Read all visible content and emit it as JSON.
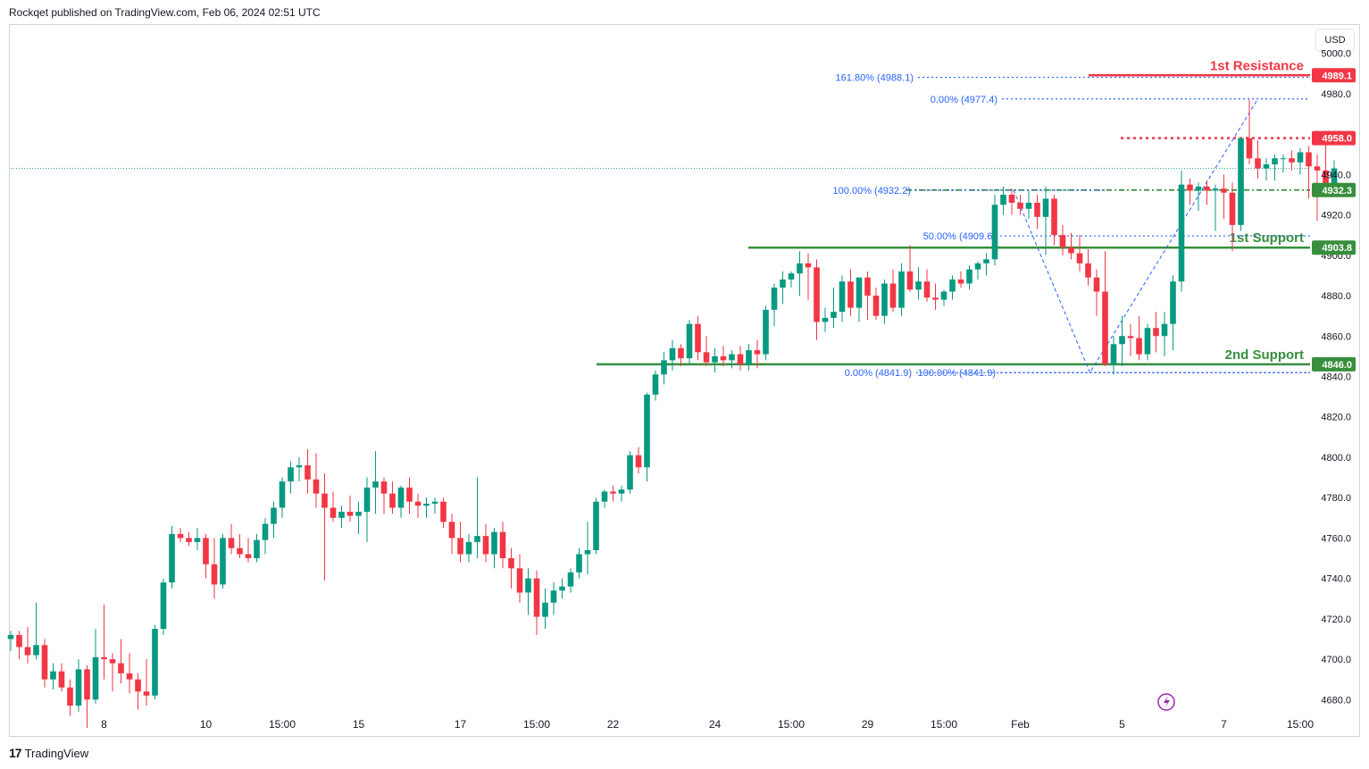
{
  "header": {
    "publisher_line": "Rockqet published on TradingView.com, Feb 06, 2024 02:51 UTC"
  },
  "currency_button": "USD",
  "footer": {
    "brand": "TradingView",
    "logo_glyph": "17"
  },
  "colors": {
    "up": "#089981",
    "down": "#f23645",
    "support": "#388e3c",
    "resistance": "#f23645",
    "fib": "#2962ff",
    "axis_text": "#131722",
    "pulse_icon": "#9c27b0"
  },
  "chart_data": {
    "type": "candlestick",
    "title": "",
    "ylim": [
      4662,
      5014
    ],
    "y_ticks": [
      4680.0,
      4700.0,
      4720.0,
      4740.0,
      4760.0,
      4780.0,
      4800.0,
      4820.0,
      4840.0,
      4860.0,
      4880.0,
      4900.0,
      4920.0,
      4940.0,
      4960.0,
      4980.0,
      5000.0
    ],
    "x_ticks": [
      {
        "label": "8",
        "index": 11
      },
      {
        "label": "10",
        "index": 23
      },
      {
        "label": "15:00",
        "index": 32
      },
      {
        "label": "15",
        "index": 41
      },
      {
        "label": "17",
        "index": 53
      },
      {
        "label": "15:00",
        "index": 62
      },
      {
        "label": "22",
        "index": 71
      },
      {
        "label": "24",
        "index": 83
      },
      {
        "label": "15:00",
        "index": 92
      },
      {
        "label": "29",
        "index": 101
      },
      {
        "label": "15:00",
        "index": 110
      },
      {
        "label": "Feb",
        "index": 119
      },
      {
        "label": "5",
        "index": 131
      },
      {
        "label": "7",
        "index": 143
      },
      {
        "label": "15:00",
        "index": 152
      }
    ],
    "candles": [
      [
        4710,
        4714,
        4704,
        4712
      ],
      [
        4712,
        4714,
        4700,
        4706
      ],
      [
        4706,
        4716,
        4698,
        4702
      ],
      [
        4702,
        4728,
        4700,
        4707
      ],
      [
        4707,
        4710,
        4686,
        4690
      ],
      [
        4690,
        4698,
        4685,
        4694
      ],
      [
        4694,
        4698,
        4684,
        4686
      ],
      [
        4686,
        4690,
        4672,
        4677
      ],
      [
        4677,
        4700,
        4674,
        4695
      ],
      [
        4695,
        4697,
        4666,
        4680
      ],
      [
        4680,
        4715,
        4678,
        4701
      ],
      [
        4701,
        4727,
        4690,
        4700
      ],
      [
        4700,
        4703,
        4684,
        4698
      ],
      [
        4698,
        4710,
        4688,
        4693
      ],
      [
        4693,
        4703,
        4683,
        4690
      ],
      [
        4690,
        4693,
        4675,
        4684
      ],
      [
        4684,
        4700,
        4677,
        4682
      ],
      [
        4682,
        4717,
        4680,
        4715
      ],
      [
        4715,
        4740,
        4712,
        4738
      ],
      [
        4738,
        4766,
        4735,
        4762
      ],
      [
        4762,
        4765,
        4758,
        4760
      ],
      [
        4760,
        4763,
        4756,
        4758
      ],
      [
        4758,
        4765,
        4754,
        4760
      ],
      [
        4760,
        4762,
        4740,
        4747
      ],
      [
        4747,
        4760,
        4730,
        4737
      ],
      [
        4737,
        4762,
        4735,
        4760
      ],
      [
        4760,
        4767,
        4752,
        4755
      ],
      [
        4755,
        4762,
        4750,
        4752
      ],
      [
        4752,
        4760,
        4748,
        4750
      ],
      [
        4750,
        4762,
        4748,
        4759
      ],
      [
        4759,
        4770,
        4752,
        4767
      ],
      [
        4767,
        4778,
        4760,
        4775
      ],
      [
        4775,
        4790,
        4770,
        4788
      ],
      [
        4788,
        4798,
        4782,
        4795
      ],
      [
        4795,
        4800,
        4788,
        4796
      ],
      [
        4796,
        4804,
        4782,
        4789
      ],
      [
        4789,
        4802,
        4775,
        4782
      ],
      [
        4782,
        4792,
        4739,
        4775
      ],
      [
        4775,
        4783,
        4768,
        4770
      ],
      [
        4770,
        4776,
        4765,
        4773
      ],
      [
        4773,
        4781,
        4768,
        4771
      ],
      [
        4771,
        4778,
        4762,
        4773
      ],
      [
        4773,
        4790,
        4758,
        4785
      ],
      [
        4785,
        4803,
        4772,
        4788
      ],
      [
        4788,
        4790,
        4772,
        4782
      ],
      [
        4782,
        4788,
        4772,
        4775
      ],
      [
        4775,
        4786,
        4770,
        4785
      ],
      [
        4785,
        4790,
        4772,
        4778
      ],
      [
        4778,
        4782,
        4770,
        4776
      ],
      [
        4776,
        4780,
        4770,
        4777
      ],
      [
        4777,
        4780,
        4772,
        4778
      ],
      [
        4778,
        4780,
        4765,
        4768
      ],
      [
        4768,
        4772,
        4752,
        4760
      ],
      [
        4760,
        4768,
        4748,
        4752
      ],
      [
        4752,
        4762,
        4748,
        4758
      ],
      [
        4758,
        4790,
        4750,
        4761
      ],
      [
        4761,
        4767,
        4748,
        4752
      ],
      [
        4752,
        4765,
        4745,
        4763
      ],
      [
        4763,
        4768,
        4745,
        4750
      ],
      [
        4750,
        4755,
        4735,
        4745
      ],
      [
        4745,
        4752,
        4728,
        4733
      ],
      [
        4733,
        4745,
        4722,
        4740
      ],
      [
        4740,
        4744,
        4712,
        4721
      ],
      [
        4721,
        4735,
        4715,
        4728
      ],
      [
        4728,
        4738,
        4722,
        4734
      ],
      [
        4734,
        4740,
        4730,
        4736
      ],
      [
        4736,
        4745,
        4733,
        4743
      ],
      [
        4743,
        4755,
        4740,
        4752
      ],
      [
        4752,
        4768,
        4742,
        4754
      ],
      [
        4754,
        4780,
        4752,
        4778
      ],
      [
        4778,
        4784,
        4775,
        4783
      ],
      [
        4783,
        4786,
        4778,
        4782
      ],
      [
        4782,
        4786,
        4778,
        4784
      ],
      [
        4784,
        4803,
        4782,
        4801
      ],
      [
        4801,
        4805,
        4792,
        4795
      ],
      [
        4795,
        4832,
        4788,
        4831
      ],
      [
        4831,
        4843,
        4828,
        4841
      ],
      [
        4841,
        4852,
        4836,
        4848
      ],
      [
        4848,
        4858,
        4843,
        4854
      ],
      [
        4854,
        4856,
        4845,
        4849
      ],
      [
        4849,
        4868,
        4846,
        4866
      ],
      [
        4866,
        4870,
        4848,
        4852
      ],
      [
        4852,
        4860,
        4845,
        4847
      ],
      [
        4847,
        4854,
        4842,
        4850
      ],
      [
        4850,
        4855,
        4845,
        4848
      ],
      [
        4848,
        4853,
        4844,
        4851
      ],
      [
        4851,
        4855,
        4843,
        4846
      ],
      [
        4846,
        4856,
        4843,
        4853
      ],
      [
        4853,
        4858,
        4844,
        4851
      ],
      [
        4851,
        4875,
        4848,
        4873
      ],
      [
        4873,
        4886,
        4865,
        4884
      ],
      [
        4884,
        4892,
        4876,
        4888
      ],
      [
        4888,
        4892,
        4884,
        4891
      ],
      [
        4891,
        4902,
        4880,
        4896
      ],
      [
        4896,
        4901,
        4878,
        4894
      ],
      [
        4894,
        4898,
        4858,
        4867
      ],
      [
        4867,
        4874,
        4862,
        4869
      ],
      [
        4869,
        4884,
        4864,
        4872
      ],
      [
        4872,
        4890,
        4867,
        4887
      ],
      [
        4887,
        4893,
        4870,
        4874
      ],
      [
        4874,
        4888,
        4867,
        4889
      ],
      [
        4889,
        4892,
        4868,
        4880
      ],
      [
        4880,
        4884,
        4868,
        4870
      ],
      [
        4870,
        4888,
        4866,
        4886
      ],
      [
        4886,
        4893,
        4872,
        4874
      ],
      [
        4874,
        4896,
        4870,
        4892
      ],
      [
        4892,
        4905,
        4882,
        4883
      ],
      [
        4883,
        4894,
        4878,
        4887
      ],
      [
        4887,
        4893,
        4877,
        4879
      ],
      [
        4879,
        4886,
        4873,
        4878
      ],
      [
        4878,
        4883,
        4875,
        4882
      ],
      [
        4882,
        4890,
        4878,
        4888
      ],
      [
        4888,
        4892,
        4884,
        4886
      ],
      [
        4886,
        4895,
        4883,
        4893
      ],
      [
        4893,
        4897,
        4888,
        4896
      ],
      [
        4896,
        4901,
        4890,
        4898
      ],
      [
        4898,
        4930,
        4895,
        4925
      ],
      [
        4925,
        4934,
        4920,
        4930
      ],
      [
        4930,
        4933,
        4920,
        4926
      ],
      [
        4926,
        4930,
        4920,
        4923
      ],
      [
        4923,
        4932,
        4918,
        4926
      ],
      [
        4926,
        4930,
        4913,
        4919
      ],
      [
        4919,
        4934,
        4900,
        4928
      ],
      [
        4928,
        4930,
        4905,
        4910
      ],
      [
        4910,
        4915,
        4900,
        4904
      ],
      [
        4904,
        4911,
        4898,
        4901
      ],
      [
        4901,
        4910,
        4892,
        4896
      ],
      [
        4896,
        4903,
        4885,
        4889
      ],
      [
        4889,
        4893,
        4870,
        4882
      ],
      [
        4882,
        4902,
        4845,
        4846
      ],
      [
        4846,
        4860,
        4841,
        4856
      ],
      [
        4856,
        4870,
        4845,
        4860
      ],
      [
        4860,
        4866,
        4850,
        4859
      ],
      [
        4859,
        4870,
        4848,
        4851
      ],
      [
        4851,
        4866,
        4848,
        4864
      ],
      [
        4864,
        4872,
        4852,
        4860
      ],
      [
        4860,
        4872,
        4850,
        4866
      ],
      [
        4866,
        4890,
        4853,
        4887
      ],
      [
        4887,
        4942,
        4882,
        4935
      ],
      [
        4935,
        4938,
        4925,
        4932
      ],
      [
        4932,
        4936,
        4922,
        4934
      ],
      [
        4934,
        4937,
        4925,
        4932
      ],
      [
        4932,
        4935,
        4912,
        4933
      ],
      [
        4933,
        4940,
        4918,
        4931
      ],
      [
        4931,
        4936,
        4902,
        4915
      ],
      [
        4915,
        4958,
        4912,
        4958
      ],
      [
        4958,
        4977,
        4945,
        4948
      ],
      [
        4948,
        4957,
        4938,
        4943
      ],
      [
        4943,
        4948,
        4937,
        4945
      ],
      [
        4945,
        4950,
        4937,
        4948
      ],
      [
        4948,
        4950,
        4941,
        4948
      ],
      [
        4948,
        4952,
        4942,
        4946
      ],
      [
        4946,
        4953,
        4940,
        4951
      ],
      [
        4951,
        4954,
        4928,
        4944
      ],
      [
        4944,
        4950,
        4917,
        4942
      ],
      [
        4942,
        4958,
        4930,
        4935
      ],
      [
        4935,
        4947,
        4933,
        4943
      ]
    ],
    "horizontal_levels": [
      {
        "label": "1st Resistance",
        "tag": "4989.1",
        "value": 4989.1,
        "color": "resistance",
        "style": "solid"
      },
      {
        "label": "",
        "tag": "4958.0",
        "value": 4958.0,
        "color": "resistance",
        "style": "dotted"
      },
      {
        "label": "",
        "tag": "4932.3",
        "value": 4932.3,
        "color": "support",
        "style": "dashdot"
      },
      {
        "label": "1st Support",
        "tag": "4903.8",
        "value": 4903.8,
        "color": "support",
        "style": "solid"
      },
      {
        "label": "2nd Support",
        "tag": "4846.0",
        "value": 4846.0,
        "color": "support",
        "style": "solid"
      }
    ],
    "fib_labels": [
      {
        "text": "161.80% (4988.1)",
        "value": 4988.1
      },
      {
        "text": "0.00% (4977.4)",
        "value": 4977.4
      },
      {
        "text": "100.00% (4932.2)",
        "value": 4932.2
      },
      {
        "text": "50.00% (4909.6)",
        "value": 4909.6
      },
      {
        "text": "0.00% (4841.9)",
        "value": 4841.9
      },
      {
        "text": "100.00% (4841.9)",
        "value": 4841.9
      }
    ],
    "last_price": 4943
  }
}
